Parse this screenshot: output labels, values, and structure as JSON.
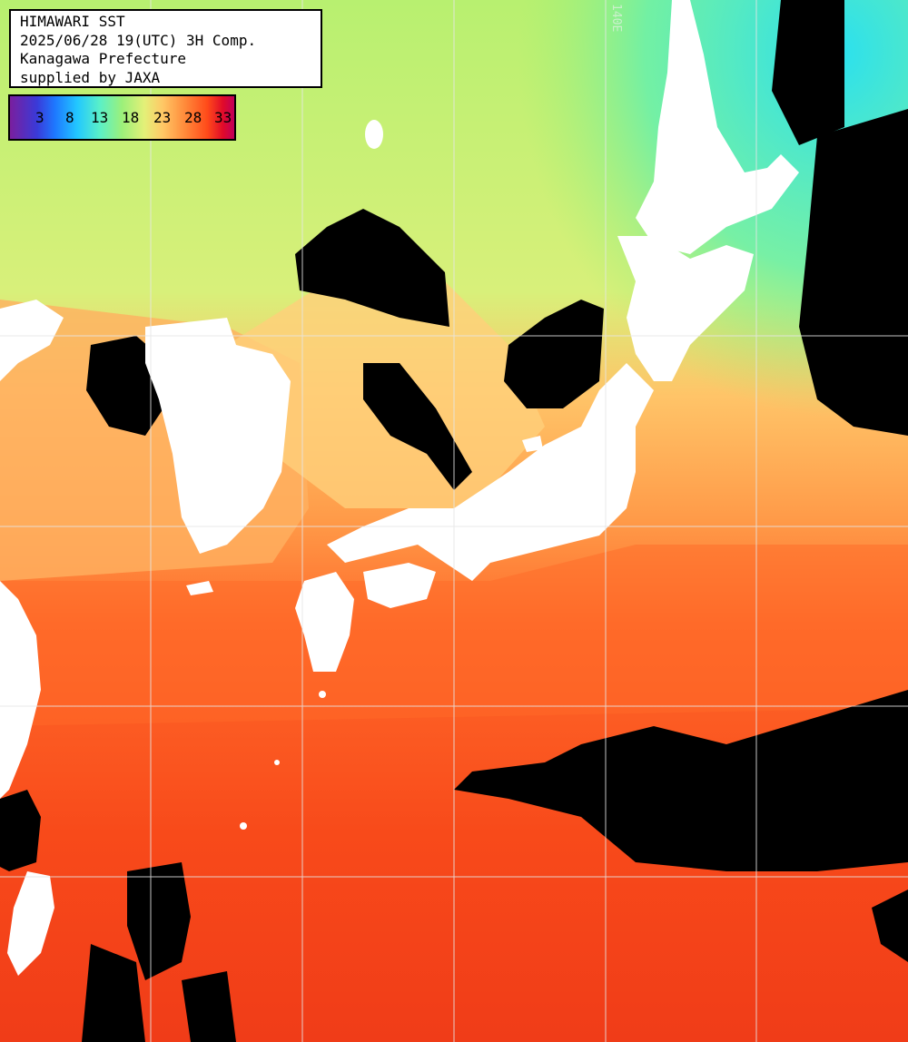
{
  "header": {
    "line1": "HIMAWARI SST",
    "line2": "2025/06/28 19(UTC) 3H Comp.",
    "line3": "Kanagawa Prefecture",
    "line4": "supplied by JAXA"
  },
  "legend": {
    "ticks": [
      "3",
      "8",
      "13",
      "18",
      "23",
      "28",
      "33"
    ]
  },
  "grid": {
    "lon_label": "140E"
  },
  "colors": {
    "land": "#ffffff",
    "cloud": "#000000",
    "grid": "#dcdcdc",
    "cold": "#22d8f0",
    "cool": "#a8f070",
    "mild": "#ffc86a",
    "warm": "#ff7a2a",
    "hot": "#f0401a"
  }
}
